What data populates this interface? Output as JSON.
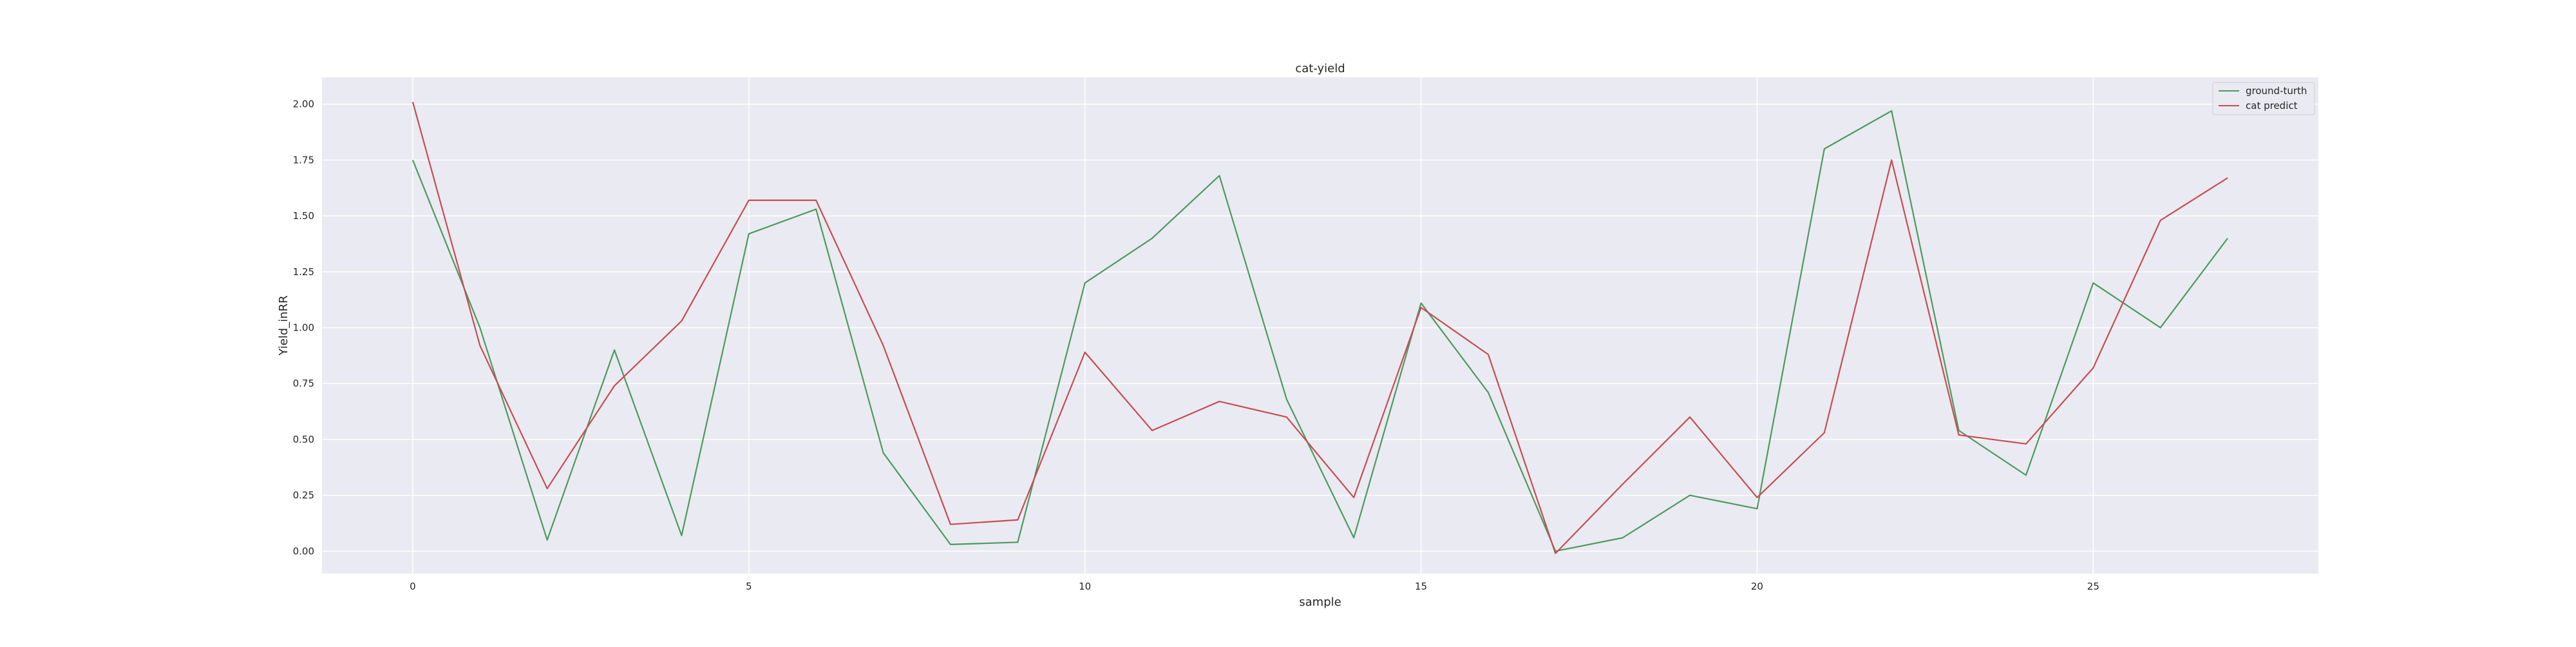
{
  "chart_data": {
    "type": "line",
    "title": "cat-yield",
    "xlabel": "sample",
    "ylabel": "Yield_inRR",
    "xlim": [
      -1.35,
      28.35
    ],
    "ylim": [
      -0.1,
      2.12
    ],
    "xticks": [
      0,
      5,
      10,
      15,
      20,
      25
    ],
    "yticks": [
      0.0,
      0.25,
      0.5,
      0.75,
      1.0,
      1.25,
      1.5,
      1.75,
      2.0
    ],
    "ytick_labels": [
      "0.00",
      "0.25",
      "0.50",
      "0.75",
      "1.00",
      "1.25",
      "1.50",
      "1.75",
      "2.00"
    ],
    "grid": true,
    "legend_position": "top-right",
    "x": [
      0,
      1,
      2,
      3,
      4,
      5,
      6,
      7,
      8,
      9,
      10,
      11,
      12,
      13,
      14,
      15,
      16,
      17,
      18,
      19,
      20,
      21,
      22,
      23,
      24,
      25,
      26,
      27
    ],
    "series": [
      {
        "name": "ground-turth",
        "color": "#4c9a5f",
        "values": [
          1.75,
          1.0,
          0.05,
          0.9,
          0.07,
          1.42,
          1.53,
          0.44,
          0.03,
          0.04,
          1.2,
          1.4,
          1.68,
          0.68,
          0.06,
          1.11,
          0.71,
          0.0,
          0.06,
          0.25,
          0.19,
          1.8,
          1.97,
          0.54,
          0.34,
          1.2,
          1.0,
          1.4
        ]
      },
      {
        "name": "cat predict",
        "color": "#c44e52",
        "values": [
          2.01,
          0.92,
          0.28,
          0.74,
          1.03,
          1.57,
          1.57,
          0.92,
          0.12,
          0.14,
          0.89,
          0.54,
          0.67,
          0.6,
          0.24,
          1.09,
          0.88,
          -0.01,
          0.3,
          0.6,
          0.24,
          0.53,
          1.75,
          0.52,
          0.48,
          0.82,
          1.48,
          1.67
        ]
      }
    ]
  }
}
